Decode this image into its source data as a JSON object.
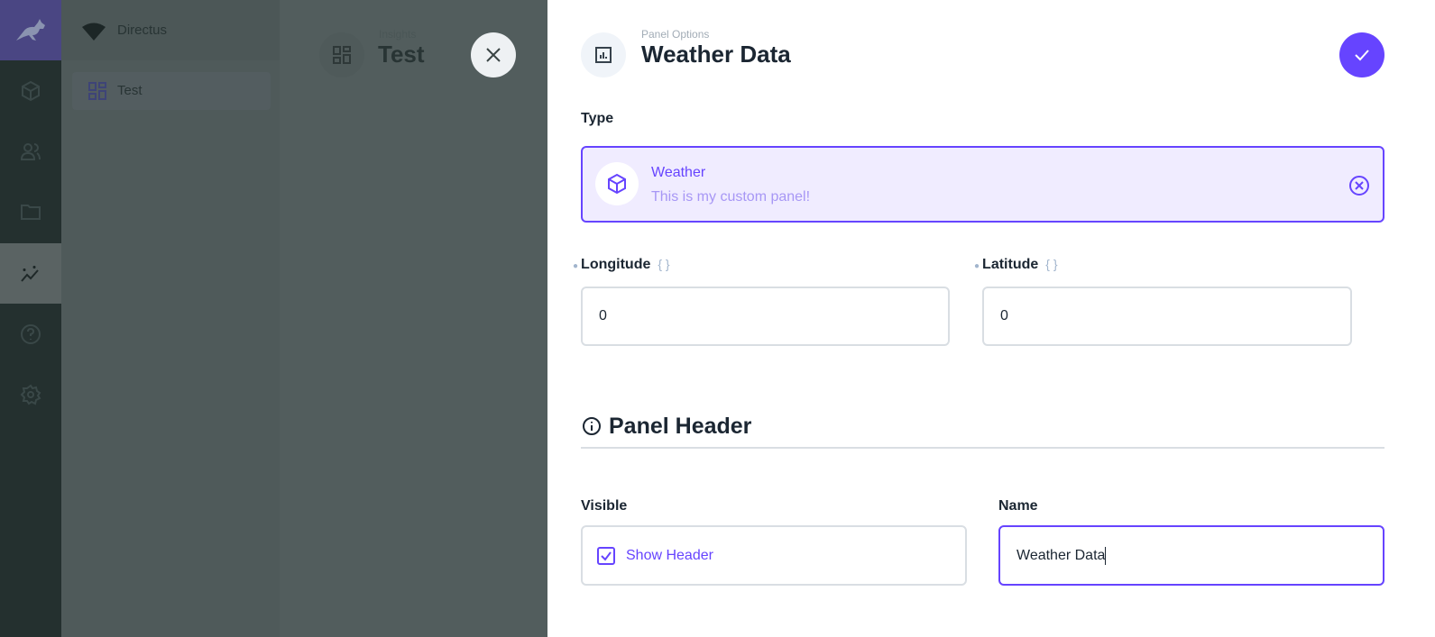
{
  "nav": {
    "items": [
      {
        "icon": "directus-rabbit-icon"
      },
      {
        "icon": "cube-icon"
      },
      {
        "icon": "users-icon"
      },
      {
        "icon": "folder-icon"
      },
      {
        "icon": "insights-icon",
        "active": true
      },
      {
        "icon": "help-icon"
      },
      {
        "icon": "gear-icon"
      }
    ]
  },
  "sidebar": {
    "project": "Directus",
    "items": [
      {
        "label": "Test",
        "icon": "dashboard-icon"
      }
    ]
  },
  "header": {
    "breadcrumb": "Insights",
    "title": "Test"
  },
  "drawer": {
    "subtitle": "Panel Options",
    "title": "Weather Data",
    "type_label": "Type",
    "type": {
      "name": "Weather",
      "description": "This is my custom panel!"
    },
    "longitude": {
      "label": "Longitude",
      "value": "0"
    },
    "latitude": {
      "label": "Latitude",
      "value": "0"
    },
    "section": "Panel Header",
    "visible": {
      "label": "Visible",
      "checkbox_label": "Show Header",
      "checked": true
    },
    "name": {
      "label": "Name",
      "value": "Weather Data"
    }
  },
  "colors": {
    "accent": "#6644ff",
    "accent_bg": "#f0ecff",
    "nav_bg": "#263238"
  }
}
